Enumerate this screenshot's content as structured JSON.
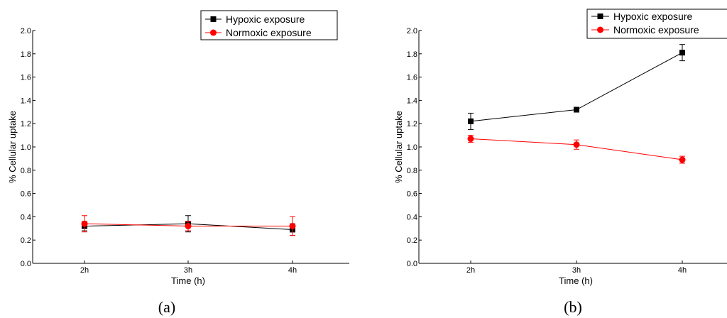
{
  "chart_data": [
    {
      "type": "line",
      "panel_label": "(a)",
      "categories": [
        "2h",
        "3h",
        "4h"
      ],
      "xlabel": "Time (h)",
      "ylabel": "% Cellular uptake",
      "ylim": [
        0,
        2.0
      ],
      "yticks": [
        "0.0",
        "0.2",
        "0.4",
        "0.6",
        "0.8",
        "1.0",
        "1.2",
        "1.4",
        "1.6",
        "1.8",
        "2.0"
      ],
      "legend_position": "top-right",
      "grid": false,
      "series": [
        {
          "name": "Hypoxic exposure",
          "color": "#000000",
          "marker": "square",
          "values": [
            0.32,
            0.34,
            0.29
          ],
          "errors": [
            0.04,
            0.07,
            0.05
          ]
        },
        {
          "name": "Normoxic exposure",
          "color": "#ff0000",
          "marker": "circle",
          "values": [
            0.34,
            0.32,
            0.32
          ],
          "errors": [
            0.07,
            0.04,
            0.08
          ]
        }
      ]
    },
    {
      "type": "line",
      "panel_label": "(b)",
      "categories": [
        "2h",
        "3h",
        "4h"
      ],
      "xlabel": "Time (h)",
      "ylabel": "% Cellular uptake",
      "ylim": [
        0,
        2.0
      ],
      "yticks": [
        "0.0",
        "0.2",
        "0.4",
        "0.6",
        "0.8",
        "1.0",
        "1.2",
        "1.4",
        "1.6",
        "1.8",
        "2.0"
      ],
      "legend_position": "top-right",
      "grid": false,
      "series": [
        {
          "name": "Hypoxic exposure",
          "color": "#000000",
          "marker": "square",
          "values": [
            1.22,
            1.32,
            1.81
          ],
          "errors": [
            0.07,
            0.01,
            0.07
          ]
        },
        {
          "name": "Normoxic exposure",
          "color": "#ff0000",
          "marker": "circle",
          "values": [
            1.07,
            1.02,
            0.89
          ],
          "errors": [
            0.03,
            0.04,
            0.03
          ]
        }
      ]
    }
  ]
}
